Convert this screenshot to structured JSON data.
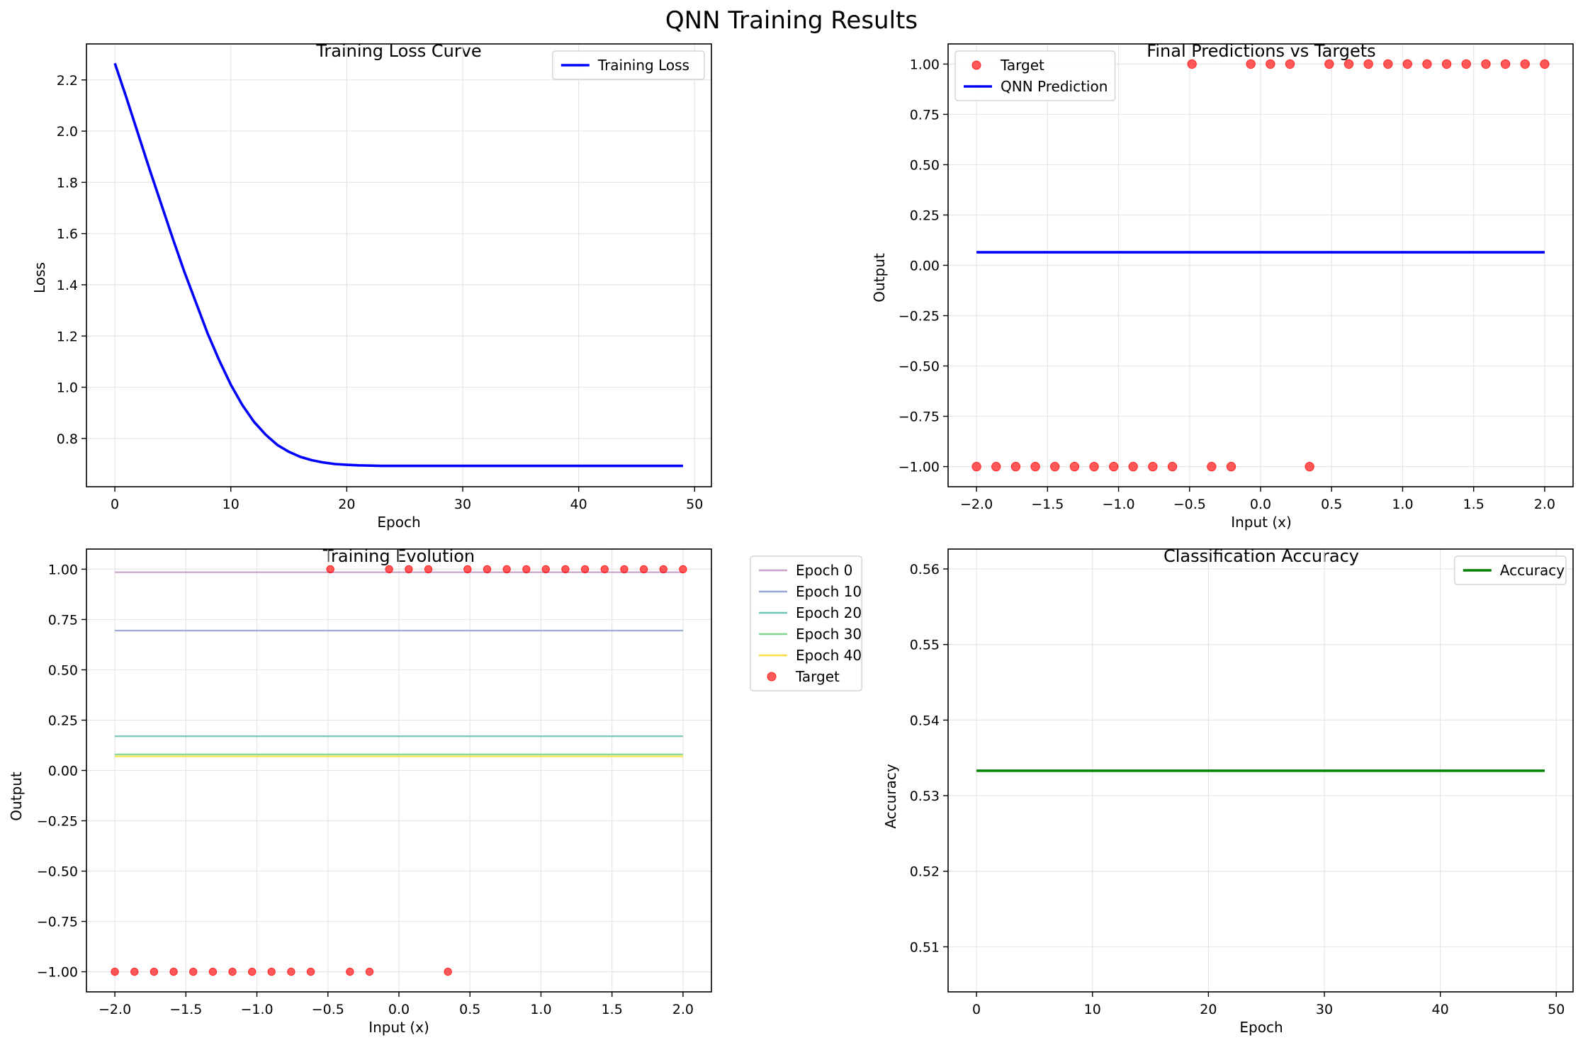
{
  "suptitle": "QNN Training Results",
  "chart_data": [
    {
      "id": "loss",
      "type": "line",
      "title": "Training Loss Curve",
      "xlabel": "Epoch",
      "ylabel": "Loss",
      "xlim": [
        -2.45,
        51.45
      ],
      "ylim": [
        0.6115,
        2.3405
      ],
      "xticks": [
        0,
        10,
        20,
        30,
        40,
        50
      ],
      "yticks": [
        0.8,
        1.0,
        1.2,
        1.4,
        1.6,
        1.8,
        2.0,
        2.2
      ],
      "ytick_decimals": 1,
      "grid": true,
      "legend": {
        "placement": "upper right",
        "entries": [
          {
            "label": "Training Loss",
            "type": "line",
            "color": "#0000ff"
          }
        ]
      },
      "series": [
        {
          "name": "Training Loss",
          "color": "#0000ff",
          "x": [
            0,
            1,
            2,
            3,
            4,
            5,
            6,
            7,
            8,
            9,
            10,
            11,
            12,
            13,
            14,
            15,
            16,
            17,
            18,
            19,
            20,
            21,
            22,
            23,
            24,
            25,
            26,
            27,
            28,
            29,
            30,
            31,
            32,
            33,
            34,
            35,
            36,
            37,
            38,
            39,
            40,
            41,
            42,
            43,
            44,
            45,
            46,
            47,
            48,
            49
          ],
          "y": [
            2.265,
            2.13,
            1.99,
            1.85,
            1.715,
            1.58,
            1.45,
            1.33,
            1.21,
            1.105,
            1.01,
            0.93,
            0.865,
            0.815,
            0.775,
            0.748,
            0.728,
            0.715,
            0.706,
            0.7,
            0.697,
            0.695,
            0.694,
            0.693,
            0.693,
            0.693,
            0.693,
            0.693,
            0.693,
            0.693,
            0.693,
            0.693,
            0.693,
            0.693,
            0.693,
            0.693,
            0.693,
            0.693,
            0.693,
            0.693,
            0.693,
            0.693,
            0.693,
            0.693,
            0.693,
            0.693,
            0.693,
            0.693,
            0.693,
            0.693
          ]
        }
      ]
    },
    {
      "id": "predictions",
      "type": "scatter",
      "title": "Final Predictions vs Targets",
      "xlabel": "Input (x)",
      "ylabel": "Output",
      "xlim": [
        -2.2,
        2.2
      ],
      "ylim": [
        -1.1,
        1.1
      ],
      "xticks": [
        -2.0,
        -1.5,
        -1.0,
        -0.5,
        0.0,
        0.5,
        1.0,
        1.5,
        2.0
      ],
      "yticks": [
        -1.0,
        -0.75,
        -0.5,
        -0.25,
        0.0,
        0.25,
        0.5,
        0.75,
        1.0
      ],
      "xtick_decimals": 1,
      "ytick_decimals": 2,
      "grid": true,
      "legend": {
        "placement": "upper left",
        "entries": [
          {
            "label": "Target",
            "type": "marker",
            "color": "#ff0000"
          },
          {
            "label": "QNN Prediction",
            "type": "line",
            "color": "#0000ff"
          }
        ]
      },
      "scatter": {
        "name": "Target",
        "color": "#ff0000",
        "x": [
          -2.0,
          -1.862,
          -1.724,
          -1.586,
          -1.448,
          -1.31,
          -1.172,
          -1.034,
          -0.897,
          -0.759,
          -0.621,
          -0.483,
          -0.345,
          -0.207,
          -0.069,
          0.069,
          0.207,
          0.345,
          0.483,
          0.621,
          0.759,
          0.897,
          1.034,
          1.172,
          1.31,
          1.448,
          1.586,
          1.724,
          1.862,
          2.0
        ],
        "y": [
          -1,
          -1,
          -1,
          -1,
          -1,
          -1,
          -1,
          -1,
          -1,
          -1,
          -1,
          1,
          -1,
          -1,
          1,
          1,
          1,
          -1,
          1,
          1,
          1,
          1,
          1,
          1,
          1,
          1,
          1,
          1,
          1,
          1
        ]
      },
      "series": [
        {
          "name": "QNN Prediction",
          "color": "#0000ff",
          "x": [
            -2.0,
            2.0
          ],
          "y": [
            0.065,
            0.065
          ]
        }
      ]
    },
    {
      "id": "evolution",
      "type": "line",
      "title": "Training Evolution",
      "xlabel": "Input (x)",
      "ylabel": "Output",
      "xlim": [
        -2.2,
        2.2
      ],
      "ylim": [
        -1.1,
        1.1
      ],
      "xticks": [
        -2.0,
        -1.5,
        -1.0,
        -0.5,
        0.0,
        0.5,
        1.0,
        1.5,
        2.0
      ],
      "yticks": [
        -1.0,
        -0.75,
        -0.5,
        -0.25,
        0.0,
        0.25,
        0.5,
        0.75,
        1.0
      ],
      "xtick_decimals": 1,
      "ytick_decimals": 2,
      "grid": true,
      "legend": {
        "placement": "outside right",
        "entries": [
          {
            "label": "Epoch 0",
            "type": "line",
            "color": "#c8a2c8"
          },
          {
            "label": "Epoch 10",
            "type": "line",
            "color": "#96a6d3"
          },
          {
            "label": "Epoch 20",
            "type": "line",
            "color": "#6fc1b4"
          },
          {
            "label": "Epoch 30",
            "type": "line",
            "color": "#7fd68c"
          },
          {
            "label": "Epoch 40",
            "type": "line",
            "color": "#f7e047"
          },
          {
            "label": "Target",
            "type": "marker",
            "color": "#ff0000"
          }
        ]
      },
      "series": [
        {
          "name": "Epoch 0",
          "color": "#c8a2c8",
          "x": [
            -2.0,
            2.0
          ],
          "y": [
            0.985,
            0.985
          ]
        },
        {
          "name": "Epoch 10",
          "color": "#96a6d3",
          "x": [
            -2.0,
            2.0
          ],
          "y": [
            0.695,
            0.695
          ]
        },
        {
          "name": "Epoch 20",
          "color": "#6fc1b4",
          "x": [
            -2.0,
            2.0
          ],
          "y": [
            0.17,
            0.17
          ]
        },
        {
          "name": "Epoch 30",
          "color": "#7fd68c",
          "x": [
            -2.0,
            2.0
          ],
          "y": [
            0.08,
            0.08
          ]
        },
        {
          "name": "Epoch 40",
          "color": "#f7e047",
          "x": [
            -2.0,
            2.0
          ],
          "y": [
            0.07,
            0.07
          ]
        }
      ],
      "scatter": {
        "name": "Target",
        "color": "#ff0000",
        "x": [
          -2.0,
          -1.862,
          -1.724,
          -1.586,
          -1.448,
          -1.31,
          -1.172,
          -1.034,
          -0.897,
          -0.759,
          -0.621,
          -0.483,
          -0.345,
          -0.207,
          -0.069,
          0.069,
          0.207,
          0.345,
          0.483,
          0.621,
          0.759,
          0.897,
          1.034,
          1.172,
          1.31,
          1.448,
          1.586,
          1.724,
          1.862,
          2.0
        ],
        "y": [
          -1,
          -1,
          -1,
          -1,
          -1,
          -1,
          -1,
          -1,
          -1,
          -1,
          -1,
          1,
          -1,
          -1,
          1,
          1,
          1,
          -1,
          1,
          1,
          1,
          1,
          1,
          1,
          1,
          1,
          1,
          1,
          1,
          1
        ]
      }
    },
    {
      "id": "accuracy",
      "type": "line",
      "title": "Classification Accuracy",
      "xlabel": "Epoch",
      "ylabel": "Accuracy",
      "xlim": [
        -2.45,
        51.45
      ],
      "ylim": [
        0.50404,
        0.56263
      ],
      "xticks": [
        0,
        10,
        20,
        30,
        40,
        50
      ],
      "yticks": [
        0.51,
        0.52,
        0.53,
        0.54,
        0.55,
        0.56
      ],
      "ytick_decimals": 2,
      "grid": true,
      "legend": {
        "placement": "upper right",
        "entries": [
          {
            "label": "Accuracy",
            "type": "line",
            "color": "#008000"
          }
        ]
      },
      "series": [
        {
          "name": "Accuracy",
          "color": "#008000",
          "x": [
            0,
            49
          ],
          "y": [
            0.5333,
            0.5333
          ]
        }
      ]
    }
  ]
}
